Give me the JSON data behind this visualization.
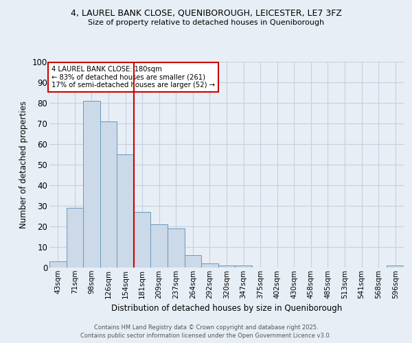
{
  "title_line1": "4, LAUREL BANK CLOSE, QUENIBOROUGH, LEICESTER, LE7 3FZ",
  "title_line2": "Size of property relative to detached houses in Queniborough",
  "xlabel": "Distribution of detached houses by size in Queniborough",
  "ylabel": "Number of detached properties",
  "footer_line1": "Contains HM Land Registry data © Crown copyright and database right 2025.",
  "footer_line2": "Contains public sector information licensed under the Open Government Licence v3.0.",
  "categories": [
    "43sqm",
    "71sqm",
    "98sqm",
    "126sqm",
    "154sqm",
    "181sqm",
    "209sqm",
    "237sqm",
    "264sqm",
    "292sqm",
    "320sqm",
    "347sqm",
    "375sqm",
    "402sqm",
    "430sqm",
    "458sqm",
    "485sqm",
    "513sqm",
    "541sqm",
    "568sqm",
    "596sqm"
  ],
  "values": [
    3,
    29,
    81,
    71,
    55,
    27,
    21,
    19,
    6,
    2,
    1,
    1,
    0,
    0,
    0,
    0,
    0,
    0,
    0,
    0,
    1
  ],
  "bar_color": "#ccd9e8",
  "bar_edge_color": "#6699bb",
  "property_line_x": 4.5,
  "annotation_text": "4 LAUREL BANK CLOSE: 180sqm\n← 83% of detached houses are smaller (261)\n17% of semi-detached houses are larger (52) →",
  "annotation_box_color": "#ffffff",
  "annotation_box_edge_color": "#cc0000",
  "property_line_color": "#cc0000",
  "ylim": [
    0,
    100
  ],
  "yticks": [
    0,
    10,
    20,
    30,
    40,
    50,
    60,
    70,
    80,
    90,
    100
  ],
  "grid_color": "#c5cfe0",
  "background_color": "#e8eef5",
  "plot_bg_color": "#e8eef5"
}
